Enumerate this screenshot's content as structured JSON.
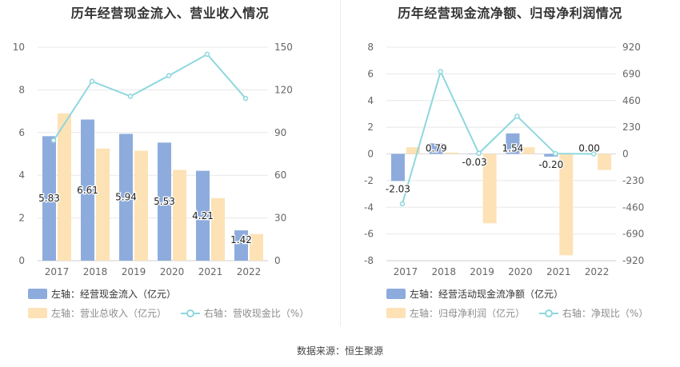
{
  "source": "数据来源：恒生聚源",
  "charts": {
    "left": {
      "legend": [
        {
          "label": "左轴：经营现金流入（亿元）",
          "color": "#8dacdd"
        },
        {
          "label": "左轴：营业总收入（亿元）",
          "color": "#fde2b6"
        },
        {
          "label": "右轴：营收现金比（%）",
          "color": "#8fd7de"
        }
      ]
    },
    "right": {
      "legend": [
        {
          "label": "左轴：经营活动现金流净额（亿元）",
          "color": "#8dacdd"
        },
        {
          "label": "左轴：归母净利润（亿元）",
          "color": "#fde2b6"
        },
        {
          "label": "右轴：净现比（%）",
          "color": "#8fd7de"
        }
      ]
    }
  },
  "chart_data": [
    {
      "type": "bar",
      "title": "历年经营现金流入、营业收入情况",
      "categories": [
        "2017",
        "2018",
        "2019",
        "2020",
        "2021",
        "2022"
      ],
      "y_left": {
        "ticks": [
          0,
          2,
          4,
          6,
          8,
          10
        ],
        "range": [
          0,
          10
        ]
      },
      "y_right": {
        "ticks": [
          0,
          30,
          60,
          90,
          120,
          150
        ],
        "range": [
          0,
          150
        ]
      },
      "series": [
        {
          "name": "左轴：经营现金流入（亿元）",
          "type": "bar",
          "axis": "left",
          "color": "#8dacdd",
          "values": [
            5.83,
            6.61,
            5.94,
            5.53,
            4.21,
            1.42
          ],
          "labels": [
            "5.83",
            "6.61",
            "5.94",
            "5.53",
            "4.21",
            "1.42"
          ]
        },
        {
          "name": "左轴：营业总收入（亿元）",
          "type": "bar",
          "axis": "left",
          "color": "#fde2b6",
          "values": [
            6.9,
            5.25,
            5.15,
            4.25,
            2.93,
            1.25
          ]
        },
        {
          "name": "右轴：营收现金比（%）",
          "type": "line",
          "axis": "right",
          "color": "#8fd7de",
          "values": [
            84.5,
            126,
            115.5,
            130,
            145,
            114
          ]
        }
      ]
    },
    {
      "type": "bar",
      "title": "历年经营现金流净额、归母净利润情况",
      "categories": [
        "2017",
        "2018",
        "2019",
        "2020",
        "2021",
        "2022"
      ],
      "y_left": {
        "ticks": [
          -8,
          -6,
          -4,
          -2,
          0,
          2,
          4,
          6,
          8
        ],
        "range": [
          -8,
          8
        ]
      },
      "y_right": {
        "ticks": [
          -920,
          -690,
          -460,
          -230,
          0,
          230,
          460,
          690,
          920
        ],
        "range": [
          -920,
          920
        ]
      },
      "series": [
        {
          "name": "左轴：经营活动现金流净额（亿元）",
          "type": "bar",
          "axis": "left",
          "color": "#8dacdd",
          "values": [
            -2.03,
            0.79,
            -0.03,
            1.54,
            -0.2,
            0.0
          ],
          "labels": [
            "-2.03",
            "0.79",
            "-0.03",
            "1.54",
            "-0.20",
            "0.00"
          ]
        },
        {
          "name": "左轴：归母净利润（亿元）",
          "type": "bar",
          "axis": "left",
          "color": "#fde2b6",
          "values": [
            0.5,
            0.1,
            -5.2,
            0.5,
            -7.6,
            -1.2
          ]
        },
        {
          "name": "右轴：净现比（%）",
          "type": "line",
          "axis": "right",
          "color": "#8fd7de",
          "values": [
            -430,
            710,
            5,
            325,
            3,
            0
          ]
        }
      ]
    }
  ]
}
